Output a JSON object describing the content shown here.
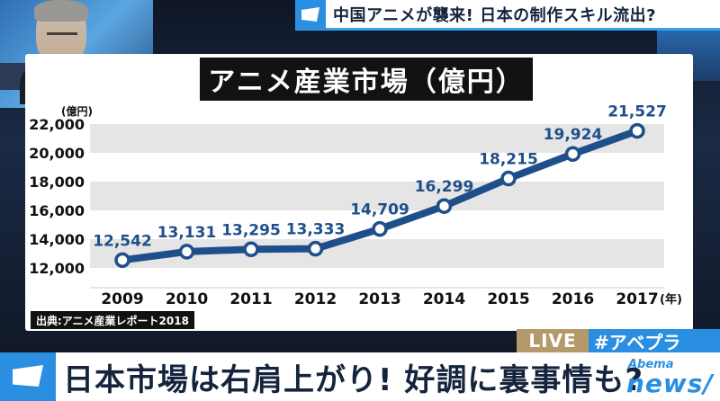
{
  "banner": {
    "top_title": "中国アニメが襲来! 日本の制作スキル流出?"
  },
  "chart_title": "アニメ産業市場（億円）",
  "source_label": "出典:アニメ産業レポート2018",
  "live_label": "LIVE",
  "hashtag_label": "#アベプラ",
  "lower_third": "日本市場は右肩上がり! 好調に裏事情も?",
  "logo": {
    "line1": "Abema",
    "line2": "news/"
  },
  "colors": {
    "series": "#1f4f8b",
    "banner_accent": "#2a8fe0",
    "band": "#e5e5e5"
  },
  "chart_data": {
    "type": "line",
    "title": "アニメ産業市場（億円）",
    "ylabel": "(億円)",
    "xlabel": "(年)",
    "x": [
      "2009",
      "2010",
      "2011",
      "2012",
      "2013",
      "2014",
      "2015",
      "2016",
      "2017"
    ],
    "series": [
      {
        "values": [
          12542,
          13131,
          13295,
          13333,
          14709,
          16299,
          18215,
          19924,
          21527
        ]
      }
    ],
    "data_labels": [
      "12,542",
      "13,131",
      "13,295",
      "13,333",
      "14,709",
      "16,299",
      "18,215",
      "19,924",
      "21,527"
    ],
    "yticks": [
      12000,
      14000,
      16000,
      18000,
      20000,
      22000
    ],
    "ytick_labels": [
      "12,000",
      "14,000",
      "16,000",
      "18,000",
      "20,000",
      "22,000"
    ],
    "ylim": [
      11000,
      22000
    ],
    "grid": "alternating horizontal bands"
  }
}
